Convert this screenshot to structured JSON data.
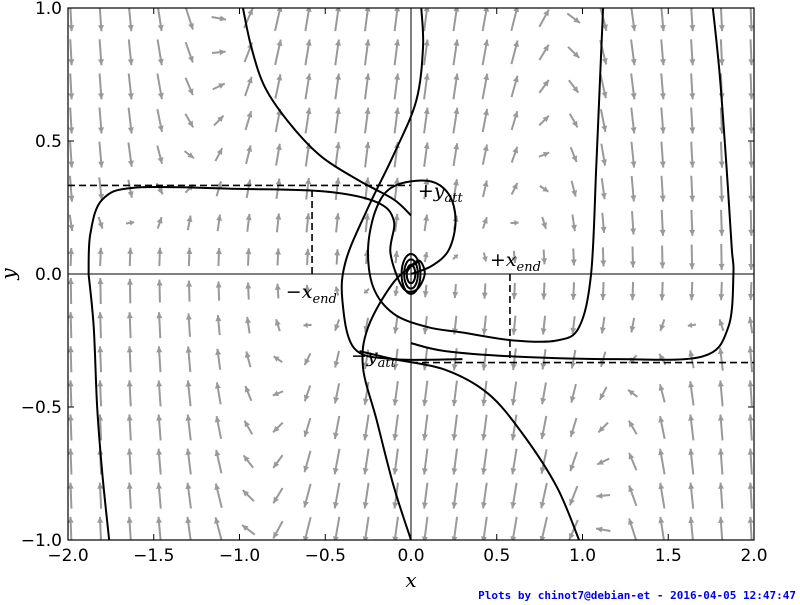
{
  "chart_data": {
    "type": "line",
    "title": "",
    "xlabel": "x",
    "ylabel": "y",
    "xlim": [
      -2.0,
      2.0
    ],
    "ylim": [
      -1.0,
      1.0
    ],
    "xticks": [
      "−2.0",
      "−1.5",
      "−1.0",
      "−0.5",
      "0.0",
      "0.5",
      "1.0",
      "1.5",
      "2.0"
    ],
    "yticks": [
      "−1.0",
      "−0.5",
      "0.0",
      "0.5",
      "1.0"
    ],
    "grid": false,
    "series": [
      {
        "values": [
          [
            -1.88,
            0.0
          ],
          [
            -1.85,
            -0.2
          ],
          [
            -1.83,
            -0.5
          ],
          [
            -1.8,
            -0.75
          ],
          [
            -1.76,
            -1.0
          ]
        ]
      },
      {
        "values": [
          [
            -1.88,
            0.0
          ],
          [
            -1.87,
            0.15
          ],
          [
            -1.8,
            0.28
          ],
          [
            -1.6,
            0.325
          ],
          [
            -1.0,
            0.32
          ],
          [
            -0.5,
            0.31
          ],
          [
            -0.2,
            0.27
          ],
          [
            -0.1,
            0.2
          ],
          [
            -0.12,
            0.08
          ],
          [
            -0.05,
            -0.05
          ],
          [
            0.03,
            -0.06
          ],
          [
            0.08,
            0.0
          ],
          [
            0.05,
            0.05
          ],
          [
            0.0,
            0.03
          ],
          [
            -0.03,
            0.0
          ]
        ]
      },
      {
        "values": [
          [
            -0.98,
            1.0
          ],
          [
            -0.93,
            0.85
          ],
          [
            -0.85,
            0.7
          ],
          [
            -0.7,
            0.56
          ],
          [
            -0.52,
            0.44
          ],
          [
            -0.3,
            0.35
          ],
          [
            -0.1,
            0.28
          ],
          [
            0.0,
            0.22
          ]
        ]
      },
      {
        "values": [
          [
            0.06,
            1.0
          ],
          [
            0.07,
            0.85
          ],
          [
            0.03,
            0.65
          ],
          [
            -0.1,
            0.45
          ],
          [
            -0.25,
            0.25
          ],
          [
            -0.38,
            0.05
          ],
          [
            -0.4,
            -0.1
          ],
          [
            -0.33,
            -0.28
          ],
          [
            -0.1,
            -0.32
          ],
          [
            0.3,
            -0.32
          ]
        ]
      },
      {
        "values": [
          [
            0.0,
            -1.0
          ],
          [
            -0.1,
            -0.8
          ],
          [
            -0.2,
            -0.55
          ],
          [
            -0.28,
            -0.35
          ],
          [
            -0.25,
            -0.2
          ],
          [
            -0.1,
            -0.03
          ],
          [
            0.05,
            0.05
          ]
        ]
      },
      {
        "values": [
          [
            0.98,
            -1.0
          ],
          [
            0.85,
            -0.8
          ],
          [
            0.65,
            -0.6
          ],
          [
            0.45,
            -0.45
          ],
          [
            0.2,
            -0.36
          ],
          [
            -0.1,
            -0.32
          ],
          [
            -0.3,
            -0.29
          ]
        ]
      },
      {
        "values": [
          [
            0.0,
            0.0
          ],
          [
            0.12,
            0.03
          ],
          [
            0.22,
            0.09
          ],
          [
            0.26,
            0.2
          ],
          [
            0.22,
            0.3
          ],
          [
            0.1,
            0.35
          ],
          [
            -0.1,
            0.33
          ],
          [
            -0.2,
            0.25
          ],
          [
            -0.25,
            0.1
          ],
          [
            -0.22,
            -0.05
          ],
          [
            -0.1,
            -0.15
          ],
          [
            0.1,
            -0.2
          ],
          [
            0.3,
            -0.22
          ],
          [
            0.6,
            -0.25
          ],
          [
            0.85,
            -0.25
          ],
          [
            0.98,
            -0.2
          ],
          [
            1.05,
            0.0
          ],
          [
            1.08,
            0.4
          ],
          [
            1.1,
            0.7
          ],
          [
            1.12,
            1.0
          ]
        ]
      },
      {
        "values": [
          [
            1.76,
            1.0
          ],
          [
            1.8,
            0.75
          ],
          [
            1.84,
            0.4
          ],
          [
            1.87,
            0.1
          ],
          [
            1.88,
            0.0
          ],
          [
            1.85,
            -0.2
          ],
          [
            1.7,
            -0.31
          ],
          [
            1.2,
            -0.32
          ],
          [
            0.6,
            -0.31
          ],
          [
            0.2,
            -0.29
          ],
          [
            0.0,
            -0.26
          ]
        ]
      }
    ],
    "reference_lines": {
      "y_att": 0.333,
      "x_end": 0.577
    },
    "annotations": [
      {
        "sign": "+",
        "base": "y",
        "sub": "att",
        "x": 0.04,
        "y": 0.29
      },
      {
        "sign": "+",
        "base": "x",
        "sub": "end",
        "x": 0.46,
        "y": 0.03
      },
      {
        "sign": "−",
        "base": "x",
        "sub": "end",
        "x": -0.73,
        "y": -0.09
      },
      {
        "sign": "−",
        "base": "y",
        "sub": "att",
        "x": -0.35,
        "y": -0.33
      }
    ],
    "colors": {
      "curve": "#000000",
      "quiver": "#999999",
      "reference": "#000000"
    }
  },
  "footer": "Plots by chinot7@debian-et - 2016-04-05 12:47:47"
}
